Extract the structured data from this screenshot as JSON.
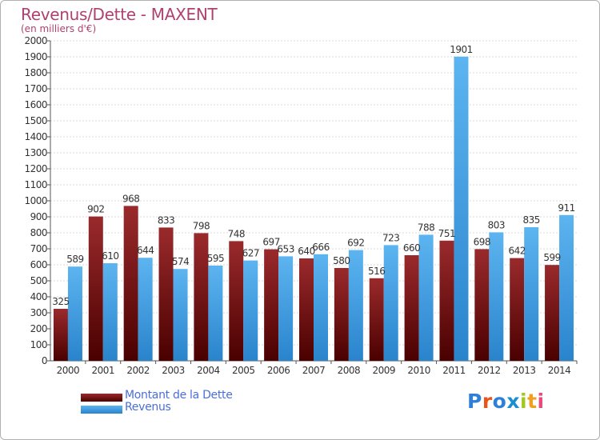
{
  "header": {
    "title": "Revenus/Dette - MAXENT",
    "subtitle": "(en milliers d'€)"
  },
  "legend": {
    "items": [
      {
        "label": "Montant de la Dette",
        "color": "#7a1416"
      },
      {
        "label": "Revenus",
        "color": "#4aa3e6"
      }
    ]
  },
  "logo": {
    "text": "Proxiti",
    "colors": [
      "#2e7fd9",
      "#e8541a",
      "#2e7fd9",
      "#1a8fd0",
      "#a0c81e",
      "#f0a020",
      "#e84b7a"
    ]
  },
  "chart_data": {
    "type": "bar",
    "categories": [
      "2000",
      "2001",
      "2002",
      "2003",
      "2004",
      "2005",
      "2006",
      "2007",
      "2008",
      "2009",
      "2010",
      "2011",
      "2012",
      "2013",
      "2014"
    ],
    "series": [
      {
        "name": "Montant de la Dette",
        "color": "#7a1416",
        "values": [
          325,
          902,
          968,
          833,
          798,
          748,
          697,
          640,
          580,
          516,
          660,
          751,
          698,
          642,
          599
        ]
      },
      {
        "name": "Revenus",
        "color": "#4aa3e6",
        "values": [
          589,
          610,
          644,
          574,
          595,
          627,
          653,
          666,
          692,
          723,
          788,
          1901,
          803,
          835,
          911
        ]
      }
    ],
    "ylim": [
      0,
      2000
    ],
    "ytick_step": 100,
    "grid": true
  }
}
